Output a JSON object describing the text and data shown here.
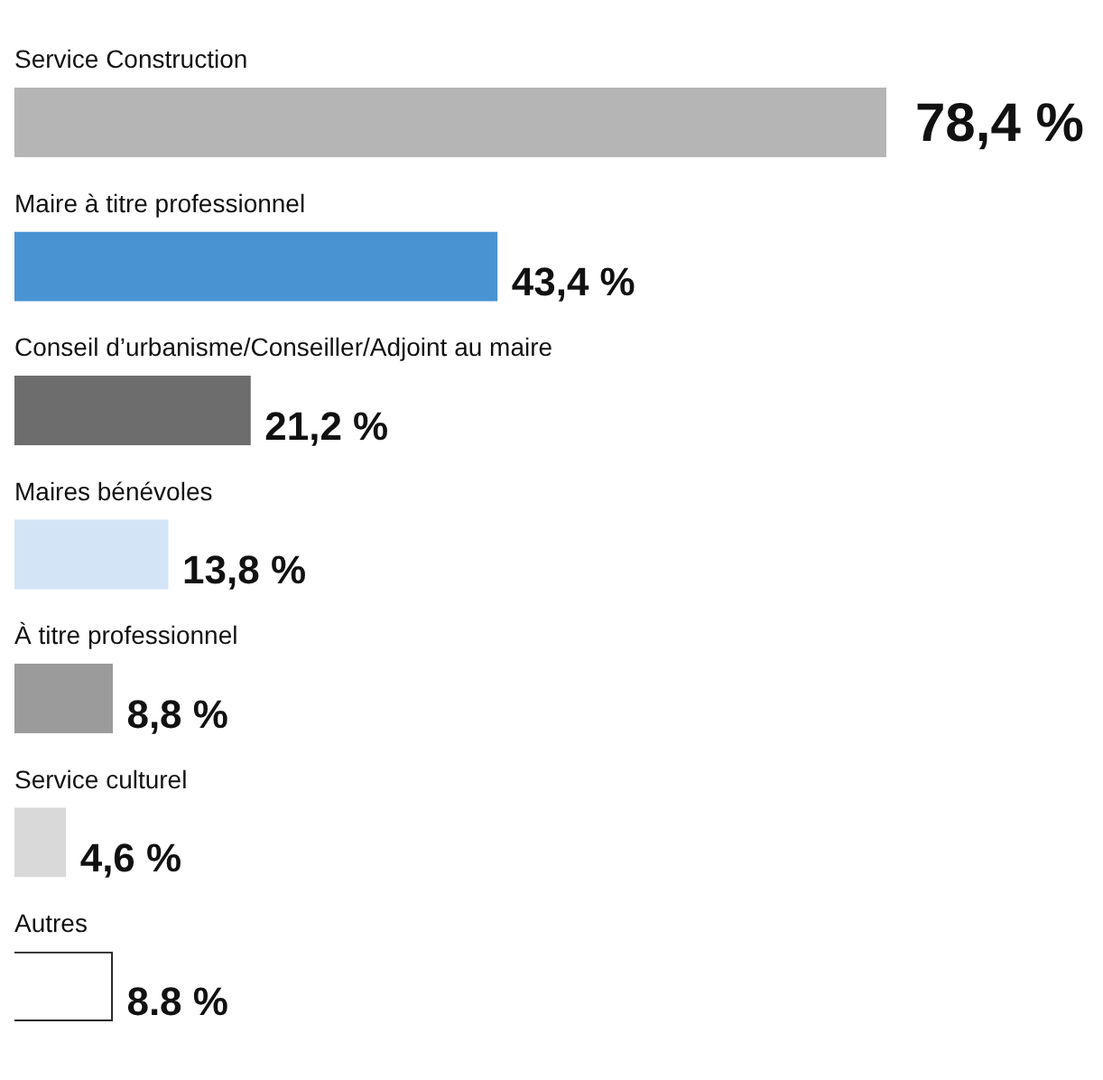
{
  "chart_data": {
    "type": "bar",
    "orientation": "horizontal",
    "categories": [
      "Service Construction",
      "Maire à titre professionnel",
      "Conseil d’urbanisme/Conseiller/Adjoint au maire",
      "Maires bénévoles",
      "À titre professionnel",
      "Service culturel",
      "Autres"
    ],
    "values": [
      78.4,
      43.4,
      21.2,
      13.8,
      8.8,
      4.6,
      8.8
    ],
    "colors": [
      "#b5b5b5",
      "#4a93d3",
      "#6d6d6d",
      "#d3e4f6",
      "#9b9b9b",
      "#d9d9d9",
      "#ffffff"
    ],
    "value_labels": [
      "78,4 %",
      "43,4 %",
      "21,2 %",
      "13,8 %",
      "8,8 %",
      "4,6 %",
      "8.8 %"
    ]
  }
}
